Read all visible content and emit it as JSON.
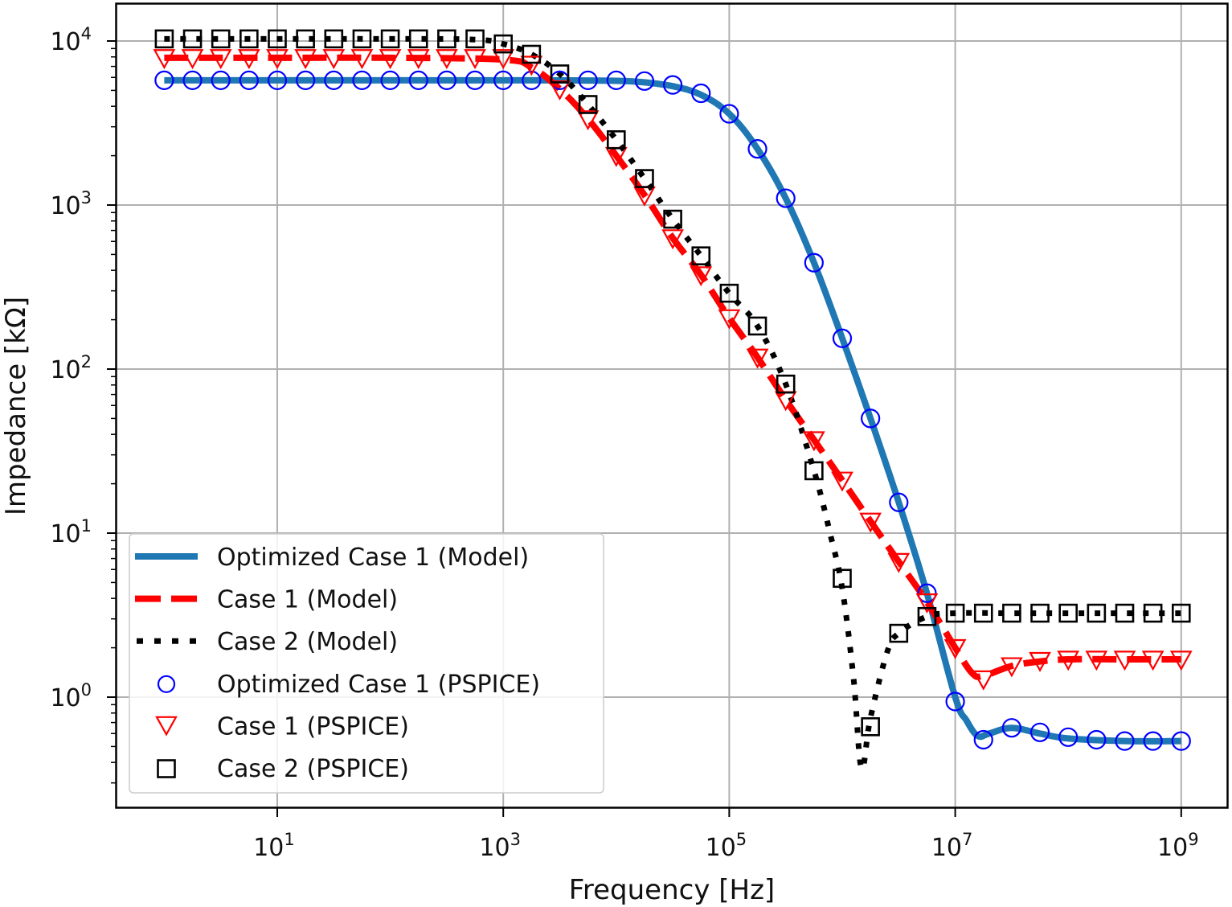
{
  "chart_data": {
    "type": "line",
    "title": "",
    "xlabel": "Frequency [Hz]",
    "ylabel": "Impedance [kΩ]",
    "xscale": "log",
    "yscale": "log",
    "xlim": [
      0.4,
      2000000000
    ],
    "ylim": [
      0.22,
      16000
    ],
    "grid": true,
    "legend_position": "lower-left",
    "x_ticks": [
      {
        "base": "10",
        "exp": "1",
        "value": 10
      },
      {
        "base": "10",
        "exp": "3",
        "value": 1000
      },
      {
        "base": "10",
        "exp": "5",
        "value": 100000
      },
      {
        "base": "10",
        "exp": "7",
        "value": 10000000
      },
      {
        "base": "10",
        "exp": "9",
        "value": 1000000000
      }
    ],
    "y_ticks": [
      {
        "base": "10",
        "exp": "0",
        "value": 1
      },
      {
        "base": "10",
        "exp": "1",
        "value": 10
      },
      {
        "base": "10",
        "exp": "2",
        "value": 100
      },
      {
        "base": "10",
        "exp": "3",
        "value": 1000
      },
      {
        "base": "10",
        "exp": "4",
        "value": 10000
      }
    ],
    "x_log10": [
      0,
      0.25,
      0.5,
      0.75,
      1,
      1.25,
      1.5,
      1.75,
      2,
      2.25,
      2.5,
      2.75,
      3,
      3.25,
      3.5,
      3.75,
      4,
      4.25,
      4.5,
      4.75,
      5,
      5.25,
      5.5,
      5.75,
      6,
      6.25,
      6.5,
      6.75,
      7,
      7.25,
      7.5,
      7.75,
      8,
      8.25,
      8.5,
      8.75,
      9
    ],
    "series": [
      {
        "name": "Optimized Case 1 (Model)",
        "kind": "line",
        "style": "solid",
        "color": "#1f77b4",
        "x_log10": [
          0,
          1,
          2,
          3,
          3.5,
          4,
          4.25,
          4.5,
          4.75,
          5,
          5.25,
          5.5,
          5.75,
          6,
          6.25,
          6.5,
          6.75,
          7,
          7.1,
          7.2,
          7.3,
          7.5,
          7.75,
          8,
          8.5,
          9
        ],
        "values": [
          5760,
          5760,
          5760,
          5760,
          5755,
          5720,
          5600,
          5300,
          4700,
          3600,
          2200,
          1100,
          445,
          154,
          50,
          15.4,
          4.3,
          1.0,
          0.72,
          0.58,
          0.6,
          0.65,
          0.6,
          0.56,
          0.54,
          0.54
        ]
      },
      {
        "name": "Case 1 (Model)",
        "kind": "line",
        "style": "dashed",
        "color": "#ff0000",
        "x_log10": [
          0,
          1,
          2,
          3,
          3.25,
          3.5,
          3.75,
          4,
          4.25,
          4.5,
          4.75,
          5,
          5.25,
          5.5,
          5.75,
          6,
          6.25,
          6.5,
          6.75,
          7,
          7.15,
          7.25,
          7.5,
          7.75,
          8,
          8.5,
          9
        ],
        "values": [
          7900,
          7900,
          7900,
          7700,
          6900,
          5100,
          3350,
          2000,
          1150,
          630,
          375,
          205,
          118,
          65,
          37,
          21,
          11.8,
          6.7,
          3.8,
          2.0,
          1.4,
          1.35,
          1.55,
          1.65,
          1.7,
          1.7,
          1.7
        ]
      },
      {
        "name": "Case 2 (Model)",
        "kind": "line",
        "style": "dotted",
        "color": "#000000",
        "x_log10": [
          0,
          1,
          2,
          2.75,
          3,
          3.25,
          3.5,
          3.75,
          4,
          4.25,
          4.5,
          4.75,
          5,
          5.25,
          5.5,
          5.75,
          5.9,
          6,
          6.1,
          6.17,
          6.25,
          6.4,
          6.5,
          6.75,
          7,
          7.5,
          8,
          9
        ],
        "values": [
          10300,
          10300,
          10300,
          10200,
          9600,
          8300,
          6300,
          4100,
          2500,
          1450,
          820,
          490,
          290,
          183,
          81,
          24,
          9.5,
          4.6,
          1.3,
          0.37,
          0.75,
          1.9,
          2.45,
          3.1,
          3.25,
          3.25,
          3.25,
          3.25
        ]
      },
      {
        "name": "Optimized Case 1 (PSPICE)",
        "kind": "marker",
        "marker": "circle",
        "color": "#0000ff",
        "values": [
          5760,
          5760,
          5760,
          5760,
          5760,
          5760,
          5760,
          5760,
          5760,
          5760,
          5760,
          5760,
          5760,
          5760,
          5760,
          5760,
          5760,
          5700,
          5400,
          4800,
          3600,
          2200,
          1100,
          445,
          154,
          50,
          15.4,
          4.3,
          0.94,
          0.55,
          0.65,
          0.61,
          0.57,
          0.55,
          0.54,
          0.54,
          0.54
        ]
      },
      {
        "name": "Case 1 (PSPICE)",
        "kind": "marker",
        "marker": "triangle-down",
        "color": "#ff0000",
        "values": [
          7900,
          7900,
          7900,
          7900,
          7900,
          7900,
          7900,
          7900,
          7900,
          7900,
          7900,
          7900,
          7900,
          7200,
          5100,
          3350,
          2000,
          1150,
          630,
          375,
          205,
          118,
          65,
          37,
          21,
          11.8,
          6.7,
          3.8,
          2.0,
          1.29,
          1.55,
          1.67,
          1.7,
          1.7,
          1.7,
          1.7,
          1.7
        ]
      },
      {
        "name": "Case 2 (PSPICE)",
        "kind": "marker",
        "marker": "square",
        "color": "#000000",
        "values": [
          10300,
          10300,
          10300,
          10300,
          10300,
          10300,
          10300,
          10300,
          10300,
          10300,
          10300,
          10300,
          9600,
          8300,
          6300,
          4100,
          2500,
          1450,
          820,
          490,
          290,
          183,
          81,
          24,
          5.3,
          0.66,
          2.45,
          3.1,
          3.25,
          3.25,
          3.25,
          3.25,
          3.25,
          3.25,
          3.25,
          3.25,
          3.25
        ]
      }
    ]
  }
}
